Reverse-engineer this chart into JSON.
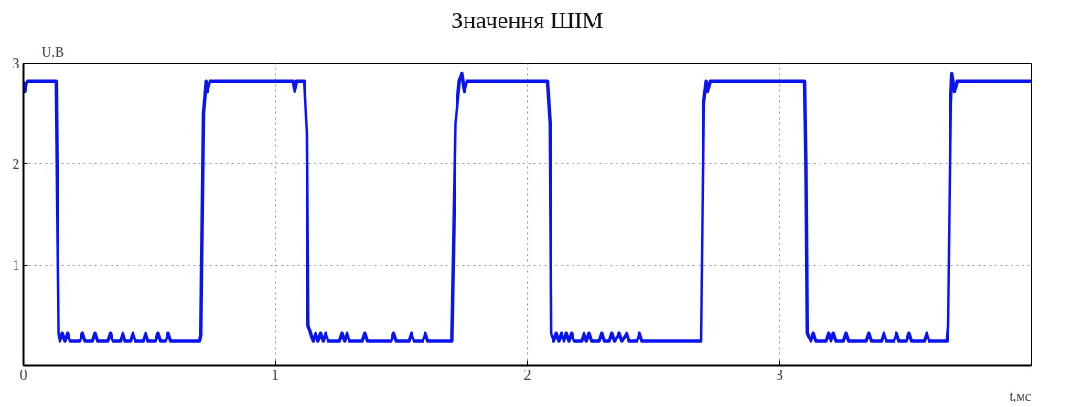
{
  "chart_data": {
    "type": "line",
    "title": "Значення ШІМ",
    "xlabel": "t,мс",
    "ylabel": "U,В",
    "xlim": [
      0,
      4
    ],
    "ylim": [
      0,
      3
    ],
    "xticks": [
      0,
      1,
      2,
      3
    ],
    "yticks": [
      1,
      2,
      3
    ],
    "grid": true,
    "line_style": "solid",
    "series": [
      {
        "color": "#0a14f0",
        "x": [
          0,
          0.005,
          0.015,
          0.13,
          0.14,
          0.145,
          0.155,
          0.165,
          0.175,
          0.185,
          0.225,
          0.235,
          0.245,
          0.275,
          0.285,
          0.295,
          0.335,
          0.345,
          0.355,
          0.385,
          0.395,
          0.405,
          0.425,
          0.435,
          0.445,
          0.475,
          0.485,
          0.495,
          0.525,
          0.535,
          0.545,
          0.565,
          0.575,
          0.585,
          0.7,
          0.705,
          0.715,
          0.725,
          0.73,
          0.74,
          1.07,
          1.077,
          1.085,
          1.115,
          1.125,
          1.13,
          1.14,
          1.15,
          1.16,
          1.17,
          1.18,
          1.19,
          1.2,
          1.21,
          1.255,
          1.265,
          1.275,
          1.285,
          1.295,
          1.345,
          1.355,
          1.365,
          1.46,
          1.47,
          1.48,
          1.53,
          1.54,
          1.55,
          1.585,
          1.595,
          1.605,
          1.7,
          1.715,
          1.73,
          1.74,
          1.75,
          1.76,
          2.08,
          2.09,
          2.095,
          2.105,
          2.115,
          2.125,
          2.135,
          2.145,
          2.155,
          2.165,
          2.175,
          2.185,
          2.215,
          2.225,
          2.235,
          2.245,
          2.255,
          2.285,
          2.295,
          2.305,
          2.325,
          2.335,
          2.345,
          2.365,
          2.375,
          2.395,
          2.405,
          2.435,
          2.445,
          2.455,
          2.69,
          2.7,
          2.71,
          2.715,
          2.725,
          3.1,
          3.105,
          3.11,
          3.125,
          3.135,
          3.145,
          3.185,
          3.195,
          3.205,
          3.215,
          3.225,
          3.255,
          3.265,
          3.275,
          3.345,
          3.355,
          3.365,
          3.405,
          3.415,
          3.425,
          3.455,
          3.465,
          3.475,
          3.505,
          3.515,
          3.525,
          3.575,
          3.585,
          3.595,
          3.665,
          3.67,
          3.68,
          3.685,
          3.695,
          3.705,
          4.0
        ],
        "values": [
          2.82,
          2.72,
          2.82,
          2.82,
          0.32,
          0.24,
          0.32,
          0.24,
          0.32,
          0.24,
          0.24,
          0.32,
          0.24,
          0.24,
          0.32,
          0.24,
          0.24,
          0.32,
          0.24,
          0.24,
          0.32,
          0.24,
          0.24,
          0.32,
          0.24,
          0.24,
          0.32,
          0.24,
          0.24,
          0.32,
          0.24,
          0.24,
          0.32,
          0.24,
          0.24,
          0.3,
          2.5,
          2.82,
          2.72,
          2.82,
          2.82,
          2.72,
          2.82,
          2.82,
          2.3,
          0.4,
          0.32,
          0.24,
          0.32,
          0.24,
          0.32,
          0.24,
          0.32,
          0.24,
          0.24,
          0.32,
          0.24,
          0.32,
          0.24,
          0.24,
          0.32,
          0.24,
          0.24,
          0.32,
          0.24,
          0.24,
          0.32,
          0.24,
          0.24,
          0.32,
          0.24,
          0.24,
          2.4,
          2.82,
          2.9,
          2.72,
          2.82,
          2.82,
          2.4,
          0.32,
          0.24,
          0.32,
          0.24,
          0.32,
          0.24,
          0.32,
          0.24,
          0.32,
          0.24,
          0.24,
          0.32,
          0.24,
          0.32,
          0.24,
          0.24,
          0.32,
          0.24,
          0.24,
          0.32,
          0.24,
          0.32,
          0.24,
          0.32,
          0.24,
          0.24,
          0.32,
          0.24,
          0.24,
          2.6,
          2.82,
          2.72,
          2.82,
          2.82,
          2.0,
          0.32,
          0.24,
          0.32,
          0.24,
          0.24,
          0.32,
          0.24,
          0.32,
          0.24,
          0.24,
          0.32,
          0.24,
          0.24,
          0.32,
          0.24,
          0.24,
          0.32,
          0.24,
          0.24,
          0.32,
          0.24,
          0.24,
          0.32,
          0.24,
          0.24,
          0.32,
          0.24,
          0.24,
          0.4,
          2.6,
          2.9,
          2.72,
          2.82,
          2.82
        ]
      }
    ]
  }
}
